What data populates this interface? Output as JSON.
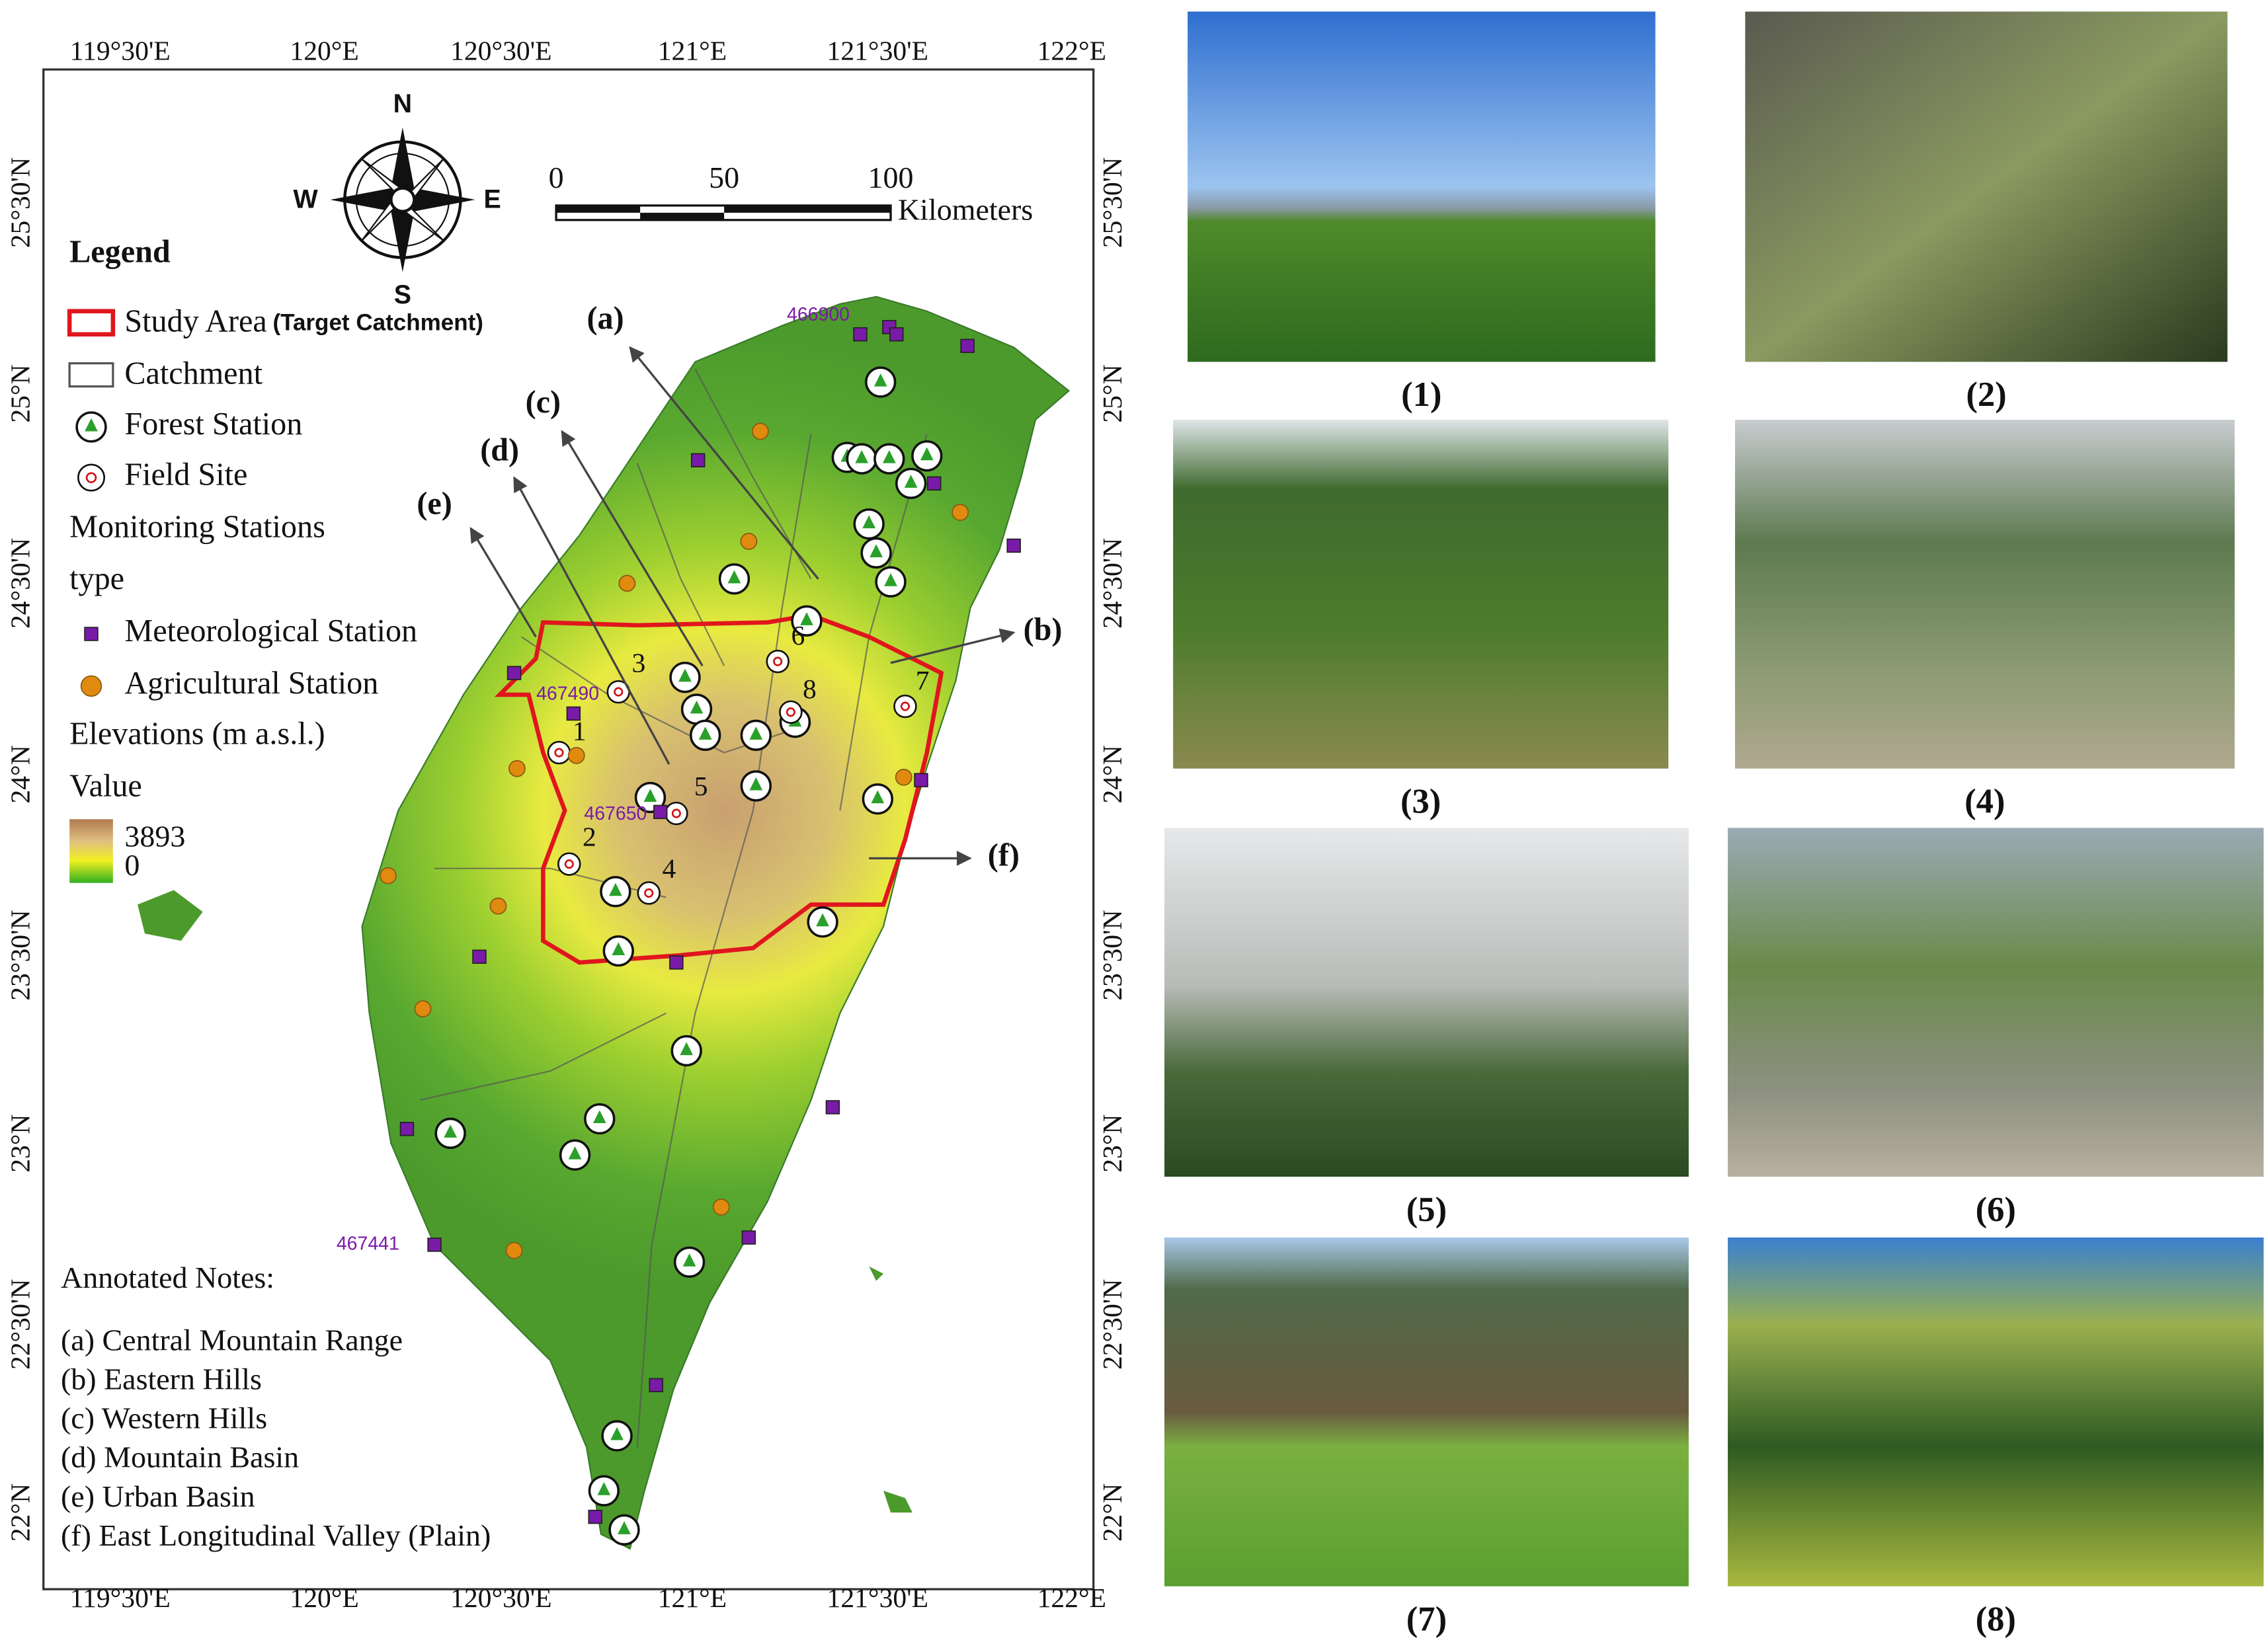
{
  "map": {
    "lon_labels": [
      "119°30'E",
      "120°E",
      "120°30'E",
      "121°E",
      "121°30'E",
      "122°E"
    ],
    "lat_labels": [
      "25°30'N",
      "25°N",
      "24°30'N",
      "24°N",
      "23°30'N",
      "23°N",
      "22°30'N",
      "22°N"
    ],
    "compass": {
      "n": "N",
      "e": "E",
      "s": "S",
      "w": "W"
    },
    "scale_bar": {
      "ticks": [
        0,
        50,
        100
      ],
      "unit": "Kilometers"
    },
    "legend": {
      "title": "Legend",
      "study_area": "Study Area",
      "study_area_note": "(Target Catchment)",
      "catchment": "Catchment",
      "forest": "Forest Station",
      "field": "Field Site",
      "monitoring": "Monitoring Stations",
      "type": "type",
      "meteo": "Meteorological Station",
      "agri": "Agricultural Station",
      "elevation": "Elevations (m a.s.l.)",
      "value": "Value",
      "max": 3893,
      "min": 0
    },
    "station_ids": [
      "466900",
      "467490",
      "467650",
      "467441"
    ],
    "region_labels": [
      "(a)",
      "(b)",
      "(c)",
      "(d)",
      "(e)",
      "(f)"
    ],
    "site_numbers": [
      1,
      2,
      3,
      4,
      5,
      6,
      7,
      8
    ],
    "notes": {
      "title": "Annotated Notes:",
      "items": [
        "(a) Central Mountain Range",
        "(b) Eastern Hills",
        "(c) Western Hills",
        "(d) Mountain Basin",
        "(e) Urban Basin",
        "(f) East Longitudinal Valley (Plain)"
      ]
    }
  },
  "photos": {
    "captions": [
      "(1)",
      "(2)",
      "(3)",
      "(4)",
      "(5)",
      "(6)",
      "(7)",
      "(8)"
    ]
  }
}
